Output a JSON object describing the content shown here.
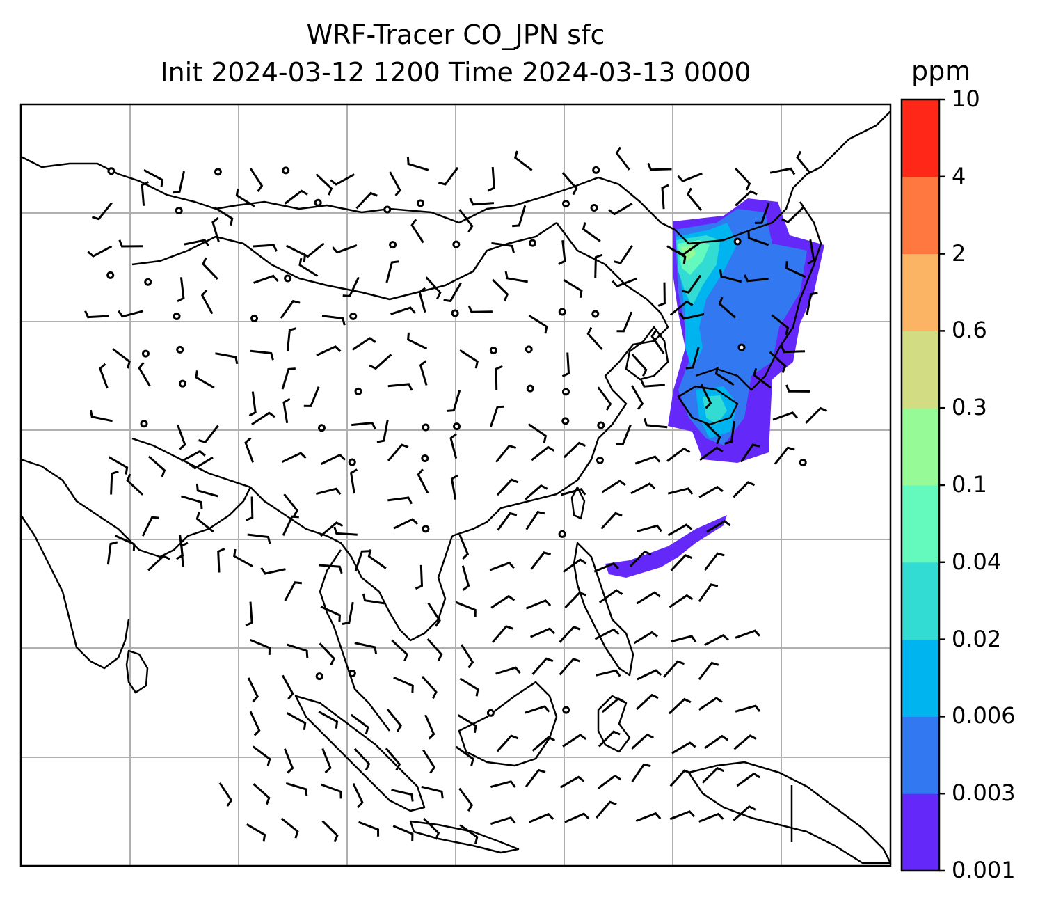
{
  "title": {
    "line1": "WRF-Tracer CO_JPN sfc",
    "line2": "Init 2024-03-12 1200 Time 2024-03-13 0000"
  },
  "colorbar": {
    "unit": "ppm",
    "levels": [
      "0.001",
      "0.003",
      "0.006",
      "0.02",
      "0.04",
      "0.1",
      "0.3",
      "0.6",
      "2",
      "4",
      "10"
    ],
    "colors": [
      "#6428f8",
      "#3278f0",
      "#00b4f0",
      "#32dcd2",
      "#64fabe",
      "#96fa96",
      "#d2dc82",
      "#fab464",
      "#ff7840",
      "#ff2818"
    ]
  },
  "map": {
    "gridlines": true,
    "plume_colors_used": [
      "#6428f8",
      "#3278f0",
      "#00b4f0",
      "#32dcd2",
      "#64fabe",
      "#96fa96"
    ]
  }
}
